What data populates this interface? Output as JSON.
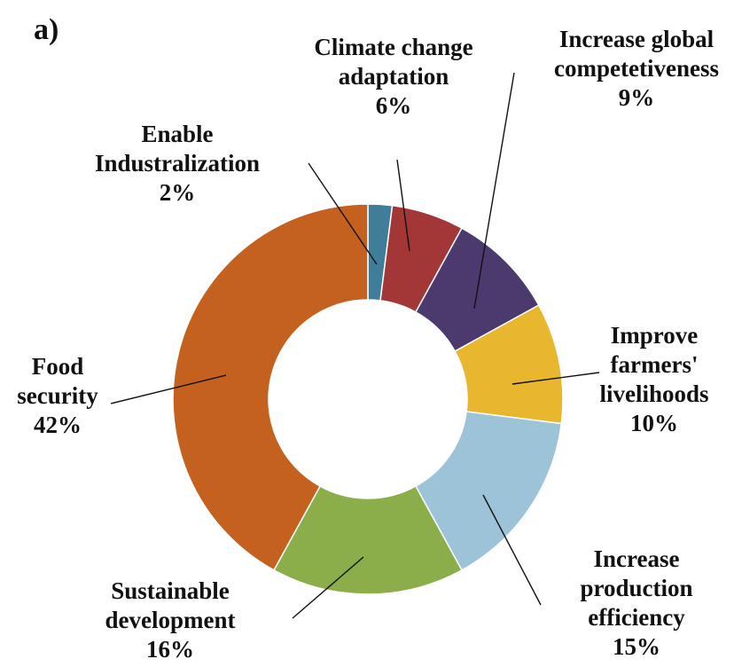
{
  "panel_label": "a)",
  "chart_data": {
    "type": "pie",
    "style": "donut",
    "title": "",
    "unit": "%",
    "slices": [
      {
        "lines": [
          "Enable",
          "Industralization"
        ],
        "pct": "2%",
        "value": 2,
        "color": "#3f7d99"
      },
      {
        "lines": [
          "Climate change",
          "adaptation"
        ],
        "pct": "6%",
        "value": 6,
        "color": "#a33636"
      },
      {
        "lines": [
          "Increase global",
          "competetiveness"
        ],
        "pct": "9%",
        "value": 9,
        "color": "#4c3a6e"
      },
      {
        "lines": [
          "Improve",
          "farmers'",
          "livelihoods"
        ],
        "pct": "10%",
        "value": 10,
        "color": "#e8b72e"
      },
      {
        "lines": [
          "Increase",
          "production",
          "efficiency"
        ],
        "pct": "15%",
        "value": 15,
        "color": "#9dc3d9"
      },
      {
        "lines": [
          "Sustainable",
          "development"
        ],
        "pct": "16%",
        "value": 16,
        "color": "#8cae4a"
      },
      {
        "lines": [
          "Food",
          "security"
        ],
        "pct": "42%",
        "value": 42,
        "color": "#c4611f"
      }
    ]
  }
}
